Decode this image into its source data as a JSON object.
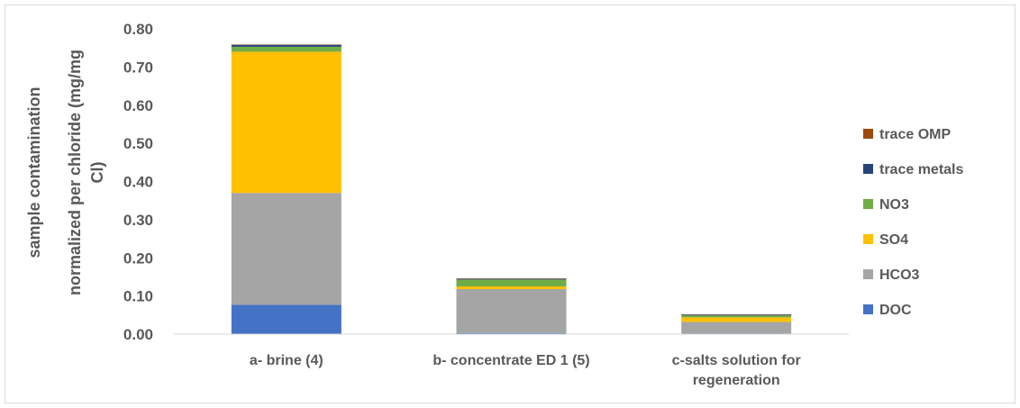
{
  "chart_data": {
    "type": "bar",
    "stacked": true,
    "categories": [
      [
        "a- brine (4)"
      ],
      [
        "b- concentrate ED 1 (5)"
      ],
      [
        "c-salts solution for",
        "regeneration"
      ]
    ],
    "series": [
      {
        "name": "DOC",
        "color": "#4472C4",
        "values": [
          0.077,
          0.003,
          0.002
        ]
      },
      {
        "name": "HCO3",
        "color": "#A5A5A5",
        "values": [
          0.293,
          0.115,
          0.03
        ]
      },
      {
        "name": "SO4",
        "color": "#FFC000",
        "values": [
          0.37,
          0.007,
          0.012
        ]
      },
      {
        "name": "NO3",
        "color": "#70AD47",
        "values": [
          0.013,
          0.018,
          0.005
        ]
      },
      {
        "name": "trace metals",
        "color": "#264478",
        "values": [
          0.005,
          0.002,
          0.002
        ]
      },
      {
        "name": "trace OMP",
        "color": "#9E480E",
        "values": [
          0.001,
          0.001,
          0.001
        ]
      }
    ],
    "yticks": [
      "0.00",
      "0.10",
      "0.20",
      "0.30",
      "0.40",
      "0.50",
      "0.60",
      "0.70",
      "0.80"
    ],
    "ylabel_lines": [
      "sample contamination",
      "normalized per chloride (mg/mg",
      "Cl)"
    ],
    "ylim": [
      0,
      0.8
    ],
    "legend_position": "right",
    "legend_order": [
      "trace OMP",
      "trace metals",
      "NO3",
      "SO4",
      "HCO3",
      "DOC"
    ],
    "grid": false
  }
}
